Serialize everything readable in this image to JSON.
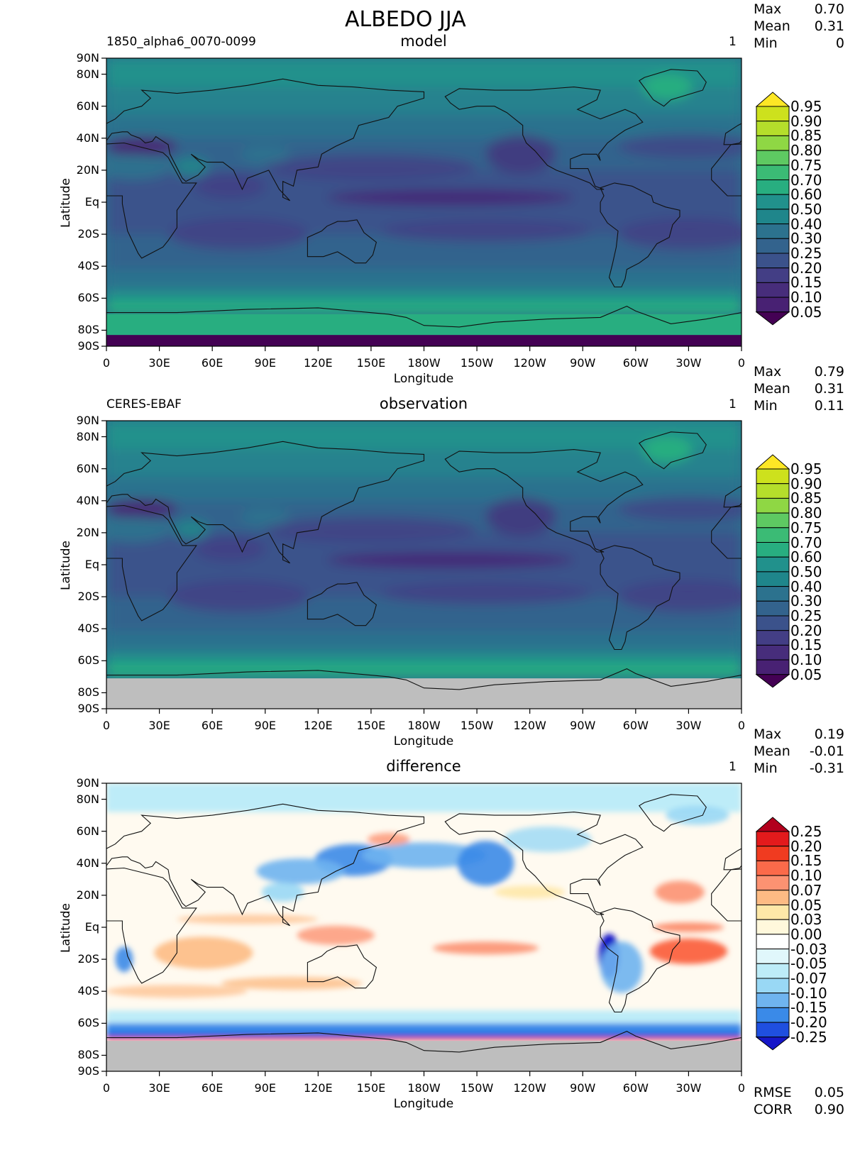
{
  "title": "ALBEDO JJA",
  "panels": [
    {
      "id": "model",
      "left_label": "1850_alpha6_0070-0099",
      "center_label": "model",
      "right_label": "1",
      "stats": [
        [
          "Max",
          "0.70"
        ],
        [
          "Mean",
          "0.31"
        ],
        [
          "Min",
          "0"
        ]
      ]
    },
    {
      "id": "observation",
      "left_label": "CERES-EBAF",
      "center_label": "observation",
      "right_label": "1",
      "stats": [
        [
          "Max",
          "0.79"
        ],
        [
          "Mean",
          "0.31"
        ],
        [
          "Min",
          "0.11"
        ]
      ]
    },
    {
      "id": "difference",
      "left_label": "",
      "center_label": "difference",
      "right_label": "1",
      "stats": [
        [
          "Max",
          "0.19"
        ],
        [
          "Mean",
          "-0.01"
        ],
        [
          "Min",
          "-0.31"
        ]
      ],
      "extra_stats": [
        [
          "RMSE",
          "0.05"
        ],
        [
          "CORR",
          "0.90"
        ]
      ]
    }
  ],
  "axes": {
    "xlabel": "Longitude",
    "ylabel": "Latitude",
    "xticks": [
      "0",
      "30E",
      "60E",
      "90E",
      "120E",
      "150E",
      "180W",
      "150W",
      "120W",
      "90W",
      "60W",
      "30W",
      "0"
    ],
    "yticks": [
      "90N",
      "80N",
      "60N",
      "40N",
      "20N",
      "Eq",
      "20S",
      "40S",
      "60S",
      "80S",
      "90S"
    ]
  },
  "colorbars": {
    "albedo": {
      "labels": [
        "0.95",
        "0.90",
        "0.85",
        "0.80",
        "0.75",
        "0.70",
        "0.60",
        "0.50",
        "0.40",
        "0.30",
        "0.25",
        "0.20",
        "0.15",
        "0.10",
        "0.05"
      ],
      "colors": [
        "#fde725",
        "#cde11d",
        "#b5de2b",
        "#8fd744",
        "#5ec962",
        "#3bbb75",
        "#28ae80",
        "#21918c",
        "#1f868b",
        "#2c728e",
        "#33638d",
        "#3b528b",
        "#433e85",
        "#472d7b",
        "#482173",
        "#440154"
      ]
    },
    "difference": {
      "labels": [
        "0.25",
        "0.20",
        "0.15",
        "0.10",
        "0.07",
        "0.05",
        "0.03",
        "0.00",
        "-0.03",
        "-0.05",
        "-0.07",
        "-0.10",
        "-0.15",
        "-0.20",
        "-0.25"
      ],
      "colors": [
        "#b2001d",
        "#e31a1c",
        "#f03b20",
        "#fb6a4a",
        "#fc9272",
        "#fdbb84",
        "#fee8a8",
        "#fff8dc",
        "#ffffff",
        "#e0f7fb",
        "#bdecf8",
        "#99d8f5",
        "#6fb4ef",
        "#3a8ae8",
        "#1f4fe0",
        "#1616c8"
      ]
    }
  },
  "chart_data": [
    {
      "type": "heatmap",
      "title": "ALBEDO JJA",
      "subtitle": "model",
      "xlabel": "Longitude",
      "ylabel": "Latitude",
      "xlim": [
        0,
        360
      ],
      "ylim": [
        -90,
        90
      ],
      "colorbar_levels": [
        0.05,
        0.1,
        0.15,
        0.2,
        0.25,
        0.3,
        0.4,
        0.5,
        0.6,
        0.7,
        0.75,
        0.8,
        0.85,
        0.9,
        0.95
      ],
      "stats": {
        "max": 0.7,
        "mean": 0.31,
        "min": 0
      }
    },
    {
      "type": "heatmap",
      "title": "ALBEDO JJA",
      "subtitle": "observation",
      "xlabel": "Longitude",
      "ylabel": "Latitude",
      "xlim": [
        0,
        360
      ],
      "ylim": [
        -90,
        90
      ],
      "colorbar_levels": [
        0.05,
        0.1,
        0.15,
        0.2,
        0.25,
        0.3,
        0.4,
        0.5,
        0.6,
        0.7,
        0.75,
        0.8,
        0.85,
        0.9,
        0.95
      ],
      "stats": {
        "max": 0.79,
        "mean": 0.31,
        "min": 0.11
      }
    },
    {
      "type": "heatmap",
      "title": "ALBEDO JJA",
      "subtitle": "difference",
      "xlabel": "Longitude",
      "ylabel": "Latitude",
      "xlim": [
        0,
        360
      ],
      "ylim": [
        -90,
        90
      ],
      "colorbar_levels": [
        -0.25,
        -0.2,
        -0.15,
        -0.1,
        -0.07,
        -0.05,
        -0.03,
        0.0,
        0.03,
        0.05,
        0.07,
        0.1,
        0.15,
        0.2,
        0.25
      ],
      "stats": {
        "max": 0.19,
        "mean": -0.01,
        "min": -0.31,
        "rmse": 0.05,
        "corr": 0.9
      }
    }
  ]
}
